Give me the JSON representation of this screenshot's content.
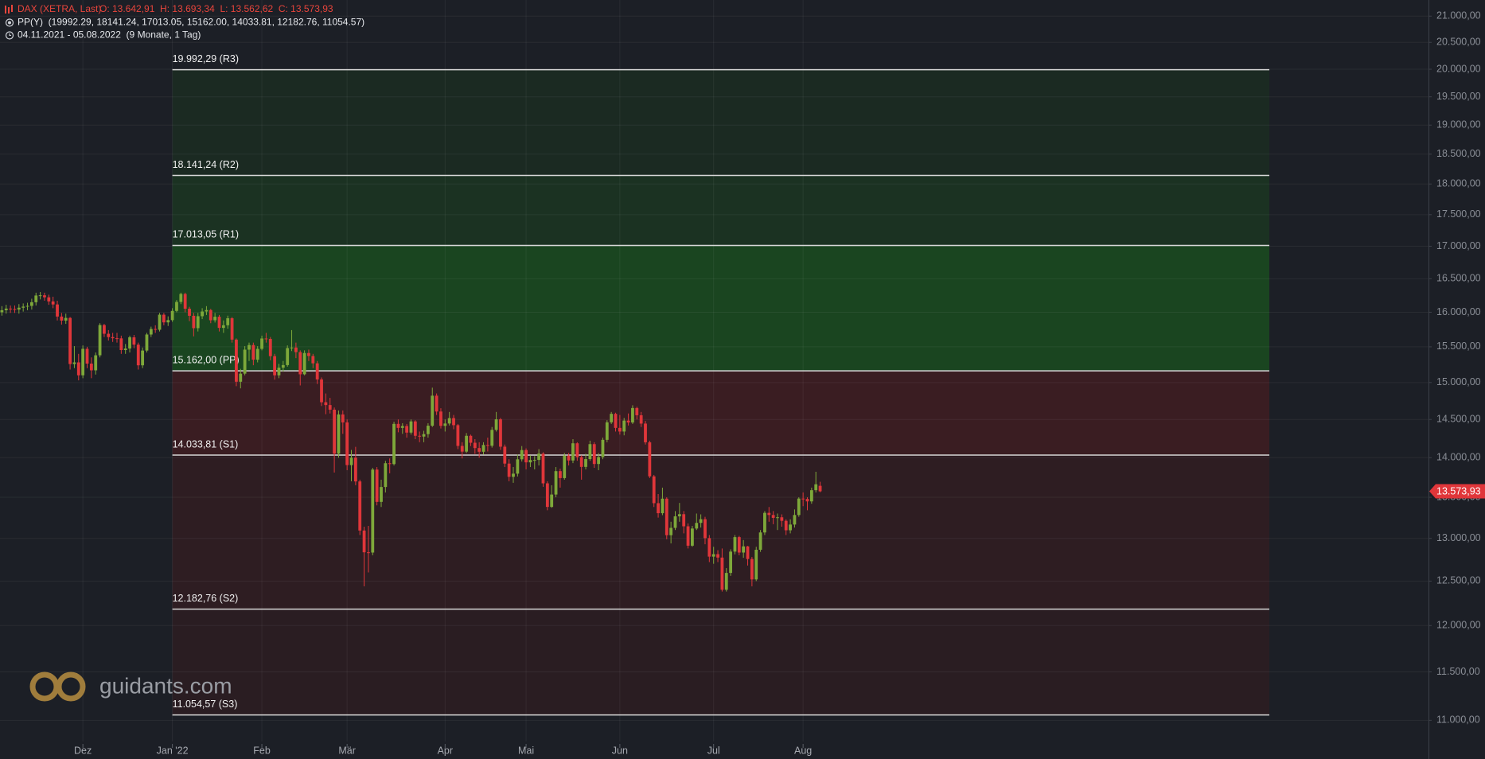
{
  "header": {
    "instrument": "DAX (XETRA, Last)",
    "ohlc": "O: 13.642,91  H: 13.693,34  L: 13.562,62  C: 13.573,93",
    "indicator": "PP(Y)  (19992.29, 18141.24, 17013.05, 15162.00, 14033.81, 12182.76, 11054.57)",
    "range": "04.11.2021 - 05.08.2022  (9 Monate, 1 Tag)"
  },
  "logo": "guidants.com",
  "chart_data": {
    "type": "candlestick",
    "log_scale": true,
    "grid": true,
    "ylim": [
      10788,
      21313
    ],
    "yticks": [
      {
        "value": 11000,
        "label": "11.000,00"
      },
      {
        "value": 11500,
        "label": "11.500,00"
      },
      {
        "value": 12000,
        "label": "12.000,00"
      },
      {
        "value": 12500,
        "label": "12.500,00"
      },
      {
        "value": 13000,
        "label": "13.000,00"
      },
      {
        "value": 13500,
        "label": "13.500,00"
      },
      {
        "value": 14000,
        "label": "14.000,00"
      },
      {
        "value": 14500,
        "label": "14.500,00"
      },
      {
        "value": 15000,
        "label": "15.000,00"
      },
      {
        "value": 15500,
        "label": "15.500,00"
      },
      {
        "value": 16000,
        "label": "16.000,00"
      },
      {
        "value": 16500,
        "label": "16.500,00"
      },
      {
        "value": 17000,
        "label": "17.000,00"
      },
      {
        "value": 17500,
        "label": "17.500,00"
      },
      {
        "value": 18000,
        "label": "18.000,00"
      },
      {
        "value": 18500,
        "label": "18.500,00"
      },
      {
        "value": 19000,
        "label": "19.000,00"
      },
      {
        "value": 19500,
        "label": "19.500,00"
      },
      {
        "value": 20000,
        "label": "20.000,00"
      },
      {
        "value": 20500,
        "label": "20.500,00"
      },
      {
        "value": 21000,
        "label": "21.000,00"
      }
    ],
    "up_color": "#7ea83a",
    "down_color": "#e0363a",
    "pivot_line_color": "#d8d8d8",
    "zone_colors": [
      "#1b2a22",
      "#1b3222",
      "#1a4520",
      "#3a1d22",
      "#2e1d22",
      "#2a1d22"
    ],
    "pivots": [
      {
        "value": 19992.29,
        "label": "19.992,29 (R3)"
      },
      {
        "value": 18141.24,
        "label": "18.141,24 (R2)"
      },
      {
        "value": 17013.05,
        "label": "17.013,05 (R1)"
      },
      {
        "value": 15162.0,
        "label": "15.162,00 (PP)"
      },
      {
        "value": 14033.81,
        "label": "14.033,81 (S1)"
      },
      {
        "value": 12182.76,
        "label": "12.182,76 (S2)"
      },
      {
        "value": 11054.57,
        "label": "11.054,57 (S3)"
      }
    ],
    "last_price": {
      "value": 13573.93,
      "label": "13.573,93"
    },
    "categories": [
      null,
      null,
      null,
      null,
      null,
      null,
      null,
      null,
      null,
      null,
      null,
      null,
      null,
      null,
      null,
      null,
      null,
      null,
      null,
      "Dez",
      null,
      null,
      null,
      null,
      null,
      null,
      null,
      null,
      null,
      null,
      null,
      null,
      null,
      null,
      null,
      null,
      null,
      null,
      null,
      null,
      "Jan '22",
      null,
      null,
      null,
      null,
      null,
      null,
      null,
      null,
      null,
      null,
      null,
      null,
      null,
      null,
      null,
      null,
      null,
      null,
      null,
      null,
      "Feb",
      null,
      null,
      null,
      null,
      null,
      null,
      null,
      null,
      null,
      null,
      null,
      null,
      null,
      null,
      null,
      null,
      null,
      null,
      null,
      "Mär",
      null,
      null,
      null,
      null,
      null,
      null,
      null,
      null,
      null,
      null,
      null,
      null,
      null,
      null,
      null,
      null,
      null,
      null,
      null,
      null,
      null,
      null,
      "Apr",
      null,
      null,
      null,
      null,
      null,
      null,
      null,
      null,
      null,
      null,
      null,
      null,
      null,
      null,
      null,
      null,
      null,
      null,
      "Mai",
      null,
      null,
      null,
      null,
      null,
      null,
      null,
      null,
      null,
      null,
      null,
      null,
      null,
      null,
      null,
      null,
      null,
      null,
      null,
      null,
      null,
      "Jun",
      null,
      null,
      null,
      null,
      null,
      null,
      null,
      null,
      null,
      null,
      null,
      null,
      null,
      null,
      null,
      null,
      null,
      null,
      null,
      null,
      null,
      "Jul",
      null,
      null,
      null,
      null,
      null,
      null,
      null,
      null,
      null,
      null,
      null,
      null,
      null,
      null,
      null,
      null,
      null,
      null,
      null,
      null,
      "Aug",
      null,
      null,
      null,
      null
    ],
    "open": [
      16000,
      16030,
      16054,
      16047,
      16040,
      16067,
      16083,
      16094,
      16148,
      16248,
      16251,
      16221,
      16160,
      16115,
      15937,
      15878,
      15917,
      15257,
      15280,
      15100,
      15472,
      15263,
      15169,
      15380,
      15813,
      15687,
      15639,
      15623,
      15621,
      15454,
      15476,
      15636,
      15531,
      15239,
      15447,
      15676,
      15756,
      15745,
      15964,
      15852,
      15885,
      16020,
      16152,
      16271,
      16052,
      15948,
      15768,
      15942,
      16011,
      16032,
      15883,
      15934,
      15772,
      15810,
      15912,
      15603,
      15011,
      15123,
      15460,
      15525,
      15318,
      15471,
      15619,
      15613,
      15368,
      15100,
      15206,
      15242,
      15482,
      15490,
      15425,
      15114,
      15412,
      15370,
      15267,
      15043,
      14731,
      14693,
      14631,
      14052,
      14567,
      14461,
      13905,
      14000,
      13698,
      13094,
      12835,
      12832,
      13848,
      13443,
      13628,
      13929,
      13918,
      14441,
      14388,
      14413,
      14326,
      14474,
      14284,
      14274,
      14306,
      14417,
      14820,
      14606,
      14415,
      14446,
      14518,
      14424,
      14152,
      14078,
      14284,
      14193,
      14124,
      14076,
      14164,
      14154,
      14362,
      14502,
      14142,
      13924,
      13756,
      13796,
      13979,
      14098,
      13940,
      13970,
      13971,
      14052,
      13674,
      13381,
      13534,
      13828,
      13740,
      14027,
      13964,
      14186,
      14007,
      13882,
      13982,
      14175,
      13919,
      14008,
      14231,
      14462,
      14575,
      14388,
      14340,
      14485,
      14460,
      14653,
      14556,
      14445,
      14199,
      13762,
      13427,
      13304,
      13483,
      13038,
      13126,
      13266,
      13292,
      13145,
      12913,
      13118,
      13186,
      13231,
      13003,
      12784,
      12813,
      12773,
      12401,
      12594,
      12843,
      13015,
      12832,
      12905,
      12756,
      12519,
      12865,
      13071,
      13308,
      13282,
      13247,
      13254,
      13211,
      13097,
      13166,
      13282,
      13484,
      13479,
      13449,
      13588,
      13642.91
    ],
    "high": [
      16090,
      16110,
      16100,
      16100,
      16120,
      16130,
      16140,
      16200,
      16290,
      16300,
      16290,
      16260,
      16230,
      16170,
      15990,
      15980,
      15930,
      15510,
      15400,
      15520,
      15500,
      15350,
      15420,
      15840,
      15830,
      15740,
      15700,
      15700,
      15660,
      15540,
      15660,
      15670,
      15560,
      15490,
      15700,
      15790,
      15810,
      15990,
      15990,
      15940,
      16060,
      16180,
      16290,
      16290,
      16080,
      15990,
      15990,
      16060,
      16090,
      16050,
      15990,
      15960,
      15880,
      15950,
      15930,
      15620,
      15190,
      15510,
      15560,
      15560,
      15510,
      15660,
      15700,
      15640,
      15400,
      15260,
      15300,
      15520,
      15740,
      15560,
      15450,
      15450,
      15460,
      15400,
      15300,
      15070,
      14850,
      14790,
      14660,
      14620,
      14620,
      14500,
      14100,
      14140,
      13720,
      13140,
      13150,
      13870,
      13880,
      13720,
      13960,
      13990,
      14470,
      14500,
      14450,
      14440,
      14500,
      14490,
      14340,
      14350,
      14450,
      14930,
      14850,
      14650,
      14500,
      14600,
      14560,
      14440,
      14200,
      14320,
      14300,
      14240,
      14200,
      14200,
      14260,
      14400,
      14600,
      14520,
      14170,
      13980,
      13880,
      14040,
      14150,
      14120,
      14030,
      14020,
      14110,
      14070,
      13700,
      13650,
      13880,
      13860,
      14060,
      14060,
      14240,
      14200,
      14030,
      14050,
      14220,
      14200,
      14060,
      14260,
      14490,
      14600,
      14590,
      14560,
      14520,
      14580,
      14690,
      14670,
      14600,
      14480,
      14220,
      13780,
      13540,
      13620,
      13500,
      13200,
      13330,
      13430,
      13330,
      13180,
      13150,
      13300,
      13290,
      13260,
      13040,
      12900,
      12860,
      12880,
      12650,
      12870,
      13040,
      13030,
      12980,
      12910,
      12780,
      12900,
      13100,
      13330,
      13380,
      13330,
      13300,
      13290,
      13230,
      13230,
      13350,
      13500,
      13560,
      13500,
      13620,
      13820,
      13693.34
    ],
    "low": [
      15950,
      15980,
      15990,
      15990,
      15980,
      16010,
      16030,
      16040,
      16100,
      16190,
      16170,
      16110,
      16060,
      15880,
      15820,
      15830,
      15180,
      15200,
      15030,
      15060,
      15200,
      15060,
      15110,
      15350,
      15640,
      15590,
      15570,
      15560,
      15400,
      15400,
      15420,
      15480,
      15180,
      15200,
      15420,
      15640,
      15700,
      15720,
      15810,
      15800,
      15860,
      16000,
      16120,
      16000,
      15870,
      15650,
      15720,
      15900,
      15960,
      15840,
      15850,
      15720,
      15700,
      15760,
      15560,
      14950,
      14920,
      15100,
      15300,
      15240,
      15280,
      15450,
      15560,
      15310,
      15040,
      15060,
      15150,
      15220,
      15440,
      15340,
      14960,
      15100,
      15300,
      15200,
      14980,
      14680,
      14570,
      14580,
      13810,
      14000,
      14310,
      13840,
      13700,
      13650,
      13040,
      12440,
      12600,
      12800,
      13400,
      13380,
      13560,
      13800,
      13900,
      14330,
      14310,
      14260,
      14300,
      14240,
      14200,
      14200,
      14260,
      14400,
      14560,
      14380,
      14340,
      14420,
      14370,
      14110,
      13990,
      14060,
      14150,
      14050,
      14000,
      14040,
      14080,
      14130,
      14340,
      14100,
      13880,
      13700,
      13680,
      13760,
      13950,
      13850,
      13880,
      13850,
      13900,
      13630,
      13340,
      13370,
      13500,
      13620,
      13720,
      13900,
      13930,
      13960,
      13720,
      13850,
      13960,
      13870,
      13840,
      13980,
      14200,
      14440,
      14340,
      14300,
      14290,
      14420,
      14440,
      14500,
      14400,
      14170,
      13740,
      13380,
      13250,
      13280,
      12990,
      12940,
      13100,
      13200,
      13060,
      12880,
      12900,
      13100,
      13130,
      12930,
      12720,
      12700,
      12720,
      12380,
      12380,
      12560,
      12810,
      12800,
      12770,
      12680,
      12440,
      12500,
      12840,
      13040,
      13200,
      13170,
      13100,
      13140,
      13040,
      13060,
      13130,
      13260,
      13390,
      13340,
      13420,
      13560,
      13562.62
    ],
    "close": [
      16030,
      16054,
      16047,
      16040,
      16067,
      16083,
      16094,
      16148,
      16248,
      16251,
      16221,
      16160,
      16115,
      15937,
      15878,
      15917,
      15257,
      15280,
      15100,
      15472,
      15263,
      15169,
      15380,
      15813,
      15687,
      15639,
      15623,
      15621,
      15454,
      15476,
      15636,
      15531,
      15239,
      15447,
      15676,
      15756,
      15745,
      15964,
      15852,
      15885,
      16020,
      16152,
      16271,
      16052,
      15948,
      15768,
      15942,
      16011,
      16032,
      15883,
      15934,
      15772,
      15810,
      15912,
      15603,
      15011,
      15123,
      15460,
      15525,
      15318,
      15471,
      15619,
      15613,
      15368,
      15100,
      15206,
      15242,
      15482,
      15490,
      15425,
      15114,
      15412,
      15370,
      15267,
      15043,
      14731,
      14693,
      14631,
      14052,
      14567,
      14461,
      13905,
      14000,
      13698,
      13094,
      12835,
      12832,
      13848,
      13443,
      13628,
      13929,
      13918,
      14441,
      14388,
      14413,
      14326,
      14474,
      14284,
      14274,
      14306,
      14417,
      14820,
      14606,
      14415,
      14446,
      14518,
      14424,
      14152,
      14078,
      14284,
      14193,
      14124,
      14076,
      14164,
      14154,
      14362,
      14502,
      14142,
      13924,
      13756,
      13796,
      13979,
      14098,
      13940,
      13970,
      13971,
      14052,
      13674,
      13381,
      13534,
      13828,
      13740,
      14027,
      13964,
      14186,
      14007,
      13882,
      13982,
      14175,
      13919,
      14008,
      14231,
      14462,
      14575,
      14388,
      14340,
      14485,
      14460,
      14653,
      14556,
      14445,
      14199,
      13762,
      13427,
      13304,
      13483,
      13038,
      13126,
      13266,
      13292,
      13145,
      12913,
      13118,
      13186,
      13231,
      13003,
      12784,
      12813,
      12773,
      12401,
      12594,
      12843,
      13015,
      12832,
      12905,
      12756,
      12519,
      12865,
      13071,
      13308,
      13282,
      13247,
      13254,
      13211,
      13097,
      13166,
      13282,
      13484,
      13479,
      13449,
      13588,
      13662,
      13573.93
    ]
  }
}
